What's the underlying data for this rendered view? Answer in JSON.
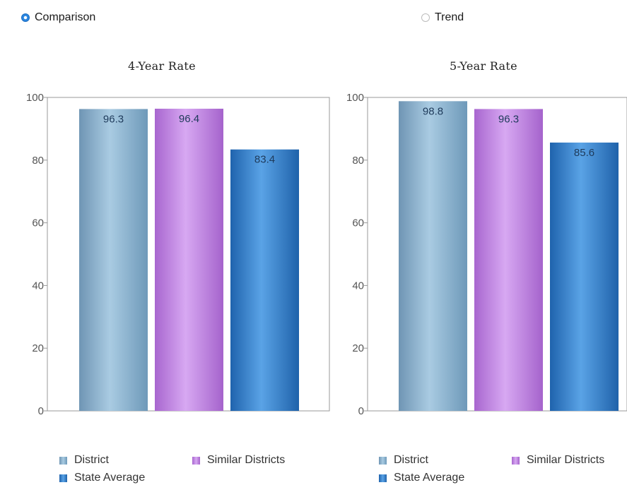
{
  "controls": {
    "comparison_label": "Comparison",
    "trend_label": "Trend",
    "selected": "Comparison"
  },
  "colors": {
    "district": "#7ea9c7",
    "similar": "#c07ee6",
    "state": "#2f7fcf",
    "frame": "#999999"
  },
  "chart_data": [
    {
      "type": "bar",
      "title": "4-Year Rate",
      "categories": [
        "District",
        "Similar Districts",
        "State Average"
      ],
      "values": [
        96.3,
        96.4,
        83.4
      ],
      "value_labels": [
        "96.3",
        "96.4",
        "83.4"
      ],
      "yticks": [
        "0",
        "20",
        "40",
        "60",
        "80",
        "100"
      ],
      "ylim": [
        0,
        100
      ],
      "grid": false,
      "legend": [
        "District",
        "Similar Districts",
        "State Average"
      ],
      "legend_position": "bottom"
    },
    {
      "type": "bar",
      "title": "5-Year Rate",
      "categories": [
        "District",
        "Similar Districts",
        "State Average"
      ],
      "values": [
        98.8,
        96.3,
        85.6
      ],
      "value_labels": [
        "98.8",
        "96.3",
        "85.6"
      ],
      "yticks": [
        "0",
        "20",
        "40",
        "60",
        "80",
        "100"
      ],
      "ylim": [
        0,
        100
      ],
      "grid": false,
      "legend": [
        "District",
        "Similar Districts",
        "State Average"
      ],
      "legend_position": "bottom"
    }
  ]
}
